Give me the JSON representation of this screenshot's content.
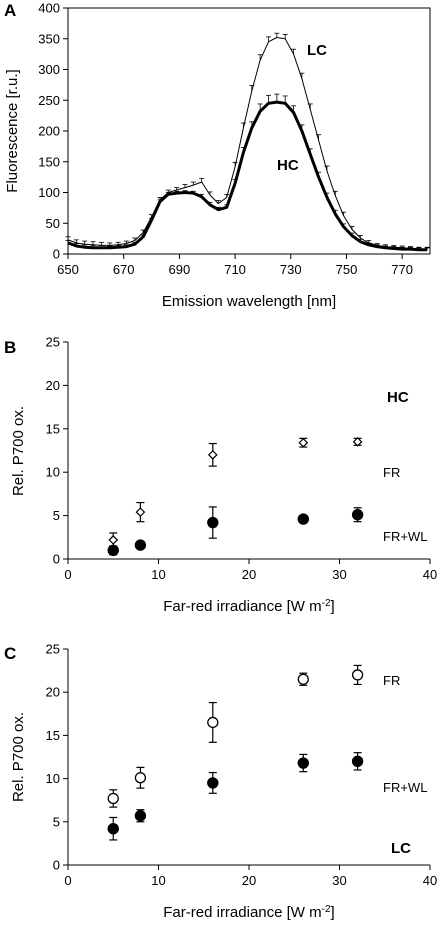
{
  "chart_data": [
    {
      "panel": "A",
      "type": "line",
      "xlabel": "Emission wavelength [nm]",
      "ylabel": "Fluorescence [r.u.]",
      "xlim": [
        650,
        780
      ],
      "ylim": [
        0,
        400
      ],
      "xticks": [
        650,
        670,
        690,
        710,
        730,
        750,
        770
      ],
      "yticks": [
        0,
        50,
        100,
        150,
        200,
        250,
        300,
        350,
        400
      ],
      "grid": false,
      "x": [
        650,
        653,
        656,
        659,
        662,
        665,
        668,
        671,
        674,
        677,
        680,
        683,
        686,
        689,
        692,
        695,
        698,
        701,
        704,
        707,
        710,
        713,
        716,
        719,
        722,
        725,
        728,
        731,
        734,
        737,
        740,
        743,
        746,
        749,
        752,
        755,
        758,
        761,
        764,
        767,
        770,
        773,
        776,
        779
      ],
      "series": [
        {
          "name": "LC",
          "line": "thin",
          "values": [
            23,
            18,
            16,
            15,
            14,
            14,
            15,
            17,
            22,
            35,
            60,
            88,
            100,
            104,
            108,
            112,
            117,
            96,
            82,
            92,
            142,
            205,
            265,
            315,
            345,
            352,
            350,
            325,
            285,
            235,
            185,
            135,
            95,
            62,
            40,
            26,
            18,
            14,
            12,
            11,
            10,
            9,
            8,
            8
          ],
          "err": [
            5,
            5,
            5,
            5,
            5,
            4,
            4,
            4,
            4,
            4,
            4,
            4,
            4,
            4,
            5,
            5,
            6,
            5,
            5,
            5,
            7,
            8,
            9,
            9,
            8,
            7,
            7,
            8,
            9,
            9,
            9,
            8,
            7,
            6,
            5,
            4,
            4,
            3,
            3,
            3,
            3,
            3,
            3,
            3
          ]
        },
        {
          "name": "HC",
          "line": "thick",
          "values": [
            18,
            13,
            11,
            10,
            10,
            10,
            11,
            12,
            16,
            28,
            55,
            85,
            97,
            99,
            100,
            99,
            93,
            80,
            72,
            76,
            115,
            165,
            205,
            232,
            245,
            247,
            245,
            230,
            200,
            162,
            125,
            92,
            65,
            44,
            30,
            20,
            15,
            12,
            10,
            9,
            8,
            8,
            7,
            7
          ],
          "err": [
            4,
            4,
            4,
            4,
            4,
            3,
            3,
            3,
            3,
            3,
            3,
            3,
            3,
            3,
            3,
            3,
            4,
            4,
            4,
            4,
            6,
            8,
            10,
            12,
            13,
            13,
            12,
            11,
            10,
            9,
            8,
            7,
            6,
            5,
            4,
            4,
            3,
            3,
            3,
            3,
            3,
            3,
            3,
            3
          ]
        }
      ],
      "annotations": [
        "LC",
        "HC"
      ]
    },
    {
      "panel": "B",
      "type": "scatter",
      "xlabel": "Far-red irradiance [W m-2]",
      "ylabel": "Rel. P700 ox.",
      "xlim": [
        0,
        40
      ],
      "ylim": [
        0,
        25
      ],
      "xticks": [
        0,
        10,
        20,
        30,
        40
      ],
      "yticks": [
        0,
        5,
        10,
        15,
        20,
        25
      ],
      "grid": false,
      "series": [
        {
          "name": "FR",
          "marker": "open-diamond",
          "x": [
            5,
            8,
            16,
            26,
            32
          ],
          "y": [
            2.2,
            5.4,
            12.0,
            13.4,
            13.5
          ],
          "err": [
            0.8,
            1.1,
            1.3,
            0.5,
            0.4
          ]
        },
        {
          "name": "FR+WL",
          "marker": "filled-circle",
          "x": [
            5,
            8,
            16,
            26,
            32
          ],
          "y": [
            1.0,
            1.6,
            4.2,
            4.6,
            5.1
          ],
          "err": [
            0.5,
            0.3,
            1.8,
            0.3,
            0.8
          ]
        }
      ],
      "annotations": [
        "HC"
      ]
    },
    {
      "panel": "C",
      "type": "scatter",
      "xlabel": "Far-red irradiance [W m-2]",
      "ylabel": "Rel. P700 ox.",
      "xlim": [
        0,
        40
      ],
      "ylim": [
        0,
        25
      ],
      "xticks": [
        0,
        10,
        20,
        30,
        40
      ],
      "yticks": [
        0,
        5,
        10,
        15,
        20,
        25
      ],
      "grid": false,
      "series": [
        {
          "name": "FR",
          "marker": "open-circle",
          "x": [
            5,
            8,
            16,
            26,
            32
          ],
          "y": [
            7.7,
            10.1,
            16.5,
            21.5,
            22.0
          ],
          "err": [
            1.0,
            1.2,
            2.3,
            0.7,
            1.1
          ]
        },
        {
          "name": "FR+WL",
          "marker": "filled-circle",
          "x": [
            5,
            8,
            16,
            26,
            32
          ],
          "y": [
            4.2,
            5.7,
            9.5,
            11.8,
            12.0
          ],
          "err": [
            1.3,
            0.7,
            1.2,
            1.0,
            1.0
          ]
        }
      ],
      "annotations": [
        "LC"
      ]
    }
  ]
}
